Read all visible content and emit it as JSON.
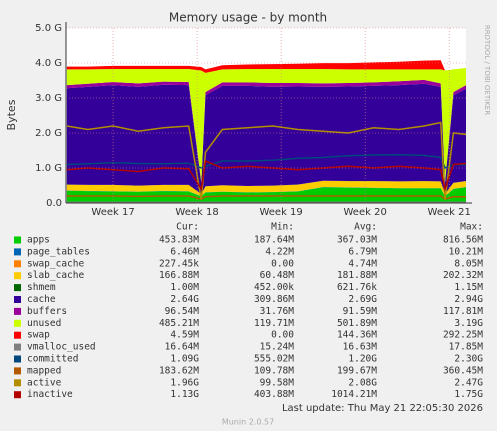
{
  "chart_data": {
    "type": "stacked-area",
    "title": "Memory usage - by month",
    "y_label": "Bytes",
    "side_text": "RRDTOOL / TOBI OETIKER",
    "x": [
      16.45,
      16.7,
      17.0,
      17.3,
      17.6,
      17.9,
      18.05,
      18.1,
      18.3,
      18.6,
      18.9,
      19.2,
      19.5,
      19.8,
      20.1,
      20.4,
      20.7,
      20.9,
      20.95,
      21.05,
      21.2
    ],
    "xlim": [
      16.44,
      21.2
    ],
    "xticks": [
      {
        "value": 17,
        "label": "Week 17"
      },
      {
        "value": 18,
        "label": "Week 18"
      },
      {
        "value": 19,
        "label": "Week 19"
      },
      {
        "value": 20,
        "label": "Week 20"
      },
      {
        "value": 21,
        "label": "Week 21"
      }
    ],
    "ylim": [
      0,
      5
    ],
    "yticks": [
      {
        "value": 0,
        "label": "0.0"
      },
      {
        "value": 1,
        "label": "1.0 G"
      },
      {
        "value": 2,
        "label": "2.0 G"
      },
      {
        "value": 3,
        "label": "3.0 G"
      },
      {
        "value": 4,
        "label": "4.0 G"
      },
      {
        "value": 5,
        "label": "5.0 G"
      }
    ],
    "grid": true,
    "stat_headers": [
      "Cur:",
      "Min:",
      "Avg:",
      "Max:"
    ],
    "series": [
      {
        "name": "apps",
        "color": "#00cc00",
        "stack": true,
        "values": [
          0.35,
          0.34,
          0.33,
          0.32,
          0.34,
          0.33,
          0.19,
          0.3,
          0.32,
          0.3,
          0.31,
          0.33,
          0.45,
          0.44,
          0.43,
          0.42,
          0.42,
          0.42,
          0.19,
          0.4,
          0.45
        ],
        "stats": [
          "453.83M",
          "187.64M",
          "367.03M",
          "816.56M"
        ]
      },
      {
        "name": "page_tables",
        "color": "#0066b3",
        "stack": true,
        "values": [
          0.006,
          0.006,
          0.006,
          0.006,
          0.006,
          0.006,
          0.006,
          0.006,
          0.006,
          0.006,
          0.006,
          0.006,
          0.006,
          0.006,
          0.006,
          0.006,
          0.006,
          0.006,
          0.006,
          0.006,
          0.006
        ],
        "stats": [
          "6.46M",
          "4.22M",
          "6.79M",
          "10.21M"
        ]
      },
      {
        "name": "swap_cache",
        "color": "#ff8000",
        "stack": true,
        "values": [
          0.0002,
          0.0002,
          0.0002,
          0.0002,
          0.0002,
          0.0002,
          0.0002,
          0.0002,
          0.0002,
          0.0002,
          0.0002,
          0.0002,
          0.0002,
          0.0002,
          0.0002,
          0.0002,
          0.0002,
          0.0002,
          0.0002,
          0.0002,
          0.0002
        ],
        "stats": [
          "227.45k",
          "0.00",
          "4.74M",
          "8.05M"
        ]
      },
      {
        "name": "slab_cache",
        "color": "#ffcc00",
        "stack": true,
        "values": [
          0.17,
          0.17,
          0.18,
          0.17,
          0.17,
          0.18,
          0.06,
          0.17,
          0.18,
          0.18,
          0.18,
          0.19,
          0.18,
          0.18,
          0.19,
          0.19,
          0.2,
          0.19,
          0.06,
          0.17,
          0.17
        ],
        "stats": [
          "166.88M",
          "60.48M",
          "181.88M",
          "202.32M"
        ]
      },
      {
        "name": "shmem",
        "color": "#006600",
        "stack": true,
        "values": [
          0.001,
          0.001,
          0.001,
          0.001,
          0.001,
          0.001,
          0.001,
          0.001,
          0.001,
          0.001,
          0.001,
          0.001,
          0.001,
          0.001,
          0.001,
          0.001,
          0.001,
          0.001,
          0.001,
          0.001,
          0.001
        ],
        "stats": [
          "1.00M",
          "452.00k",
          "621.76k",
          "1.15M"
        ]
      },
      {
        "name": "cache",
        "color": "#330099",
        "stack": true,
        "values": [
          2.75,
          2.8,
          2.85,
          2.82,
          2.86,
          2.85,
          0.31,
          2.6,
          2.84,
          2.86,
          2.82,
          2.8,
          2.68,
          2.7,
          2.72,
          2.75,
          2.78,
          2.7,
          0.31,
          2.5,
          2.64
        ],
        "stats": [
          "2.64G",
          "309.86M",
          "2.69G",
          "2.94G"
        ]
      },
      {
        "name": "buffers",
        "color": "#990099",
        "stack": true,
        "values": [
          0.09,
          0.09,
          0.09,
          0.1,
          0.09,
          0.09,
          0.03,
          0.09,
          0.1,
          0.1,
          0.11,
          0.1,
          0.1,
          0.1,
          0.1,
          0.11,
          0.11,
          0.1,
          0.03,
          0.09,
          0.1
        ],
        "stats": [
          "96.54M",
          "31.76M",
          "91.59M",
          "117.81M"
        ]
      },
      {
        "name": "unused",
        "color": "#ccff00",
        "stack": true,
        "values": [
          0.45,
          0.41,
          0.37,
          0.41,
          0.36,
          0.37,
          3.19,
          0.55,
          0.37,
          0.38,
          0.4,
          0.4,
          0.41,
          0.39,
          0.37,
          0.34,
          0.3,
          0.4,
          3.19,
          0.65,
          0.49
        ],
        "stats": [
          "485.21M",
          "119.71M",
          "501.89M",
          "3.19G"
        ]
      },
      {
        "name": "swap",
        "color": "#ff0000",
        "stack": true,
        "values": [
          0.08,
          0.08,
          0.09,
          0.09,
          0.09,
          0.09,
          0.1,
          0.1,
          0.12,
          0.13,
          0.14,
          0.15,
          0.17,
          0.18,
          0.2,
          0.22,
          0.25,
          0.26,
          0.0,
          0.0,
          0.0
        ],
        "stats": [
          "4.59M",
          "0.00",
          "144.36M",
          "292.25M"
        ]
      },
      {
        "name": "vmalloc_used",
        "color": "#808080",
        "stack": false,
        "values": [
          0.017,
          0.017,
          0.017,
          0.017,
          0.017,
          0.017,
          0.017,
          0.017,
          0.017,
          0.017,
          0.017,
          0.017,
          0.017,
          0.017,
          0.017,
          0.017,
          0.017,
          0.017,
          0.017,
          0.017,
          0.017
        ],
        "stats": [
          "16.64M",
          "15.24M",
          "16.63M",
          "17.85M"
        ]
      },
      {
        "name": "committed",
        "color": "#00487d",
        "stack": false,
        "values": [
          1.1,
          1.12,
          1.15,
          1.13,
          1.12,
          1.14,
          1.0,
          1.05,
          1.2,
          1.2,
          1.22,
          1.28,
          1.3,
          1.35,
          1.37,
          1.38,
          1.36,
          1.3,
          1.0,
          1.1,
          1.09
        ],
        "stats": [
          "1.09G",
          "555.02M",
          "1.20G",
          "2.30G"
        ]
      },
      {
        "name": "mapped",
        "color": "#b35a00",
        "stack": false,
        "values": [
          0.2,
          0.2,
          0.2,
          0.19,
          0.2,
          0.2,
          0.11,
          0.18,
          0.2,
          0.2,
          0.2,
          0.2,
          0.2,
          0.2,
          0.2,
          0.2,
          0.2,
          0.2,
          0.11,
          0.18,
          0.18
        ],
        "stats": [
          "183.62M",
          "109.78M",
          "199.67M",
          "360.45M"
        ]
      },
      {
        "name": "active",
        "color": "#b38f00",
        "stack": false,
        "values": [
          2.2,
          2.1,
          2.2,
          2.05,
          2.15,
          2.2,
          0.1,
          1.45,
          2.1,
          2.15,
          2.2,
          2.1,
          2.05,
          2.0,
          2.15,
          2.1,
          2.2,
          2.3,
          0.1,
          2.0,
          1.96
        ],
        "stats": [
          "1.96G",
          "99.58M",
          "2.08G",
          "2.47G"
        ]
      },
      {
        "name": "inactive",
        "color": "#b30000",
        "stack": false,
        "values": [
          0.95,
          1.0,
          0.95,
          0.9,
          1.0,
          0.98,
          0.4,
          1.2,
          1.0,
          1.05,
          1.0,
          0.95,
          1.0,
          1.05,
          1.0,
          1.05,
          1.0,
          0.95,
          0.4,
          1.1,
          1.13
        ],
        "stats": [
          "1.13G",
          "403.88M",
          "1014.21M",
          "1.75G"
        ]
      }
    ],
    "last_update": "Last update: Thu May 21 22:05:30 2026",
    "footer": "Munin 2.0.57"
  }
}
